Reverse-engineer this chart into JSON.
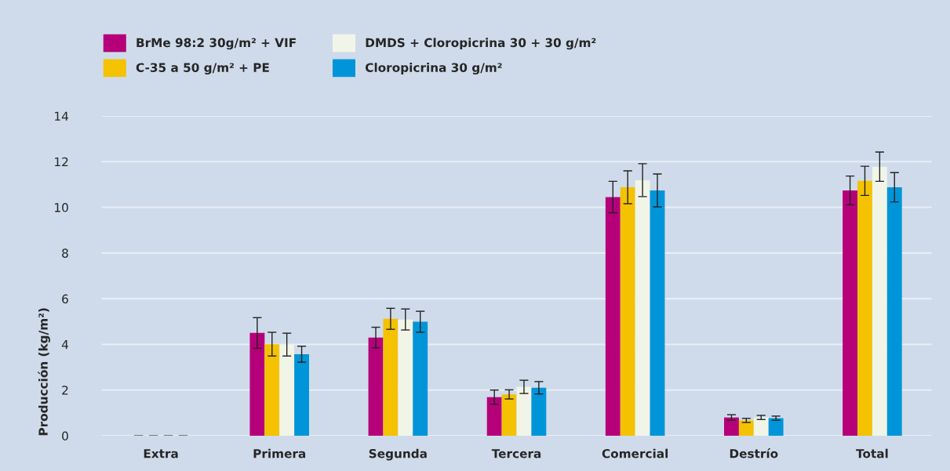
{
  "chart_data": {
    "type": "bar",
    "ylabel": "Producción (kg/m²)",
    "categories": [
      "Extra",
      "Primera",
      "Segunda",
      "Tercera",
      "Comercial",
      "Destrío",
      "Total"
    ],
    "series": [
      {
        "name": "BrMe 98:2 30g/m² + VIF",
        "color": "#b5007a",
        "values": [
          0,
          4.5,
          4.3,
          1.69,
          10.45,
          0.8,
          10.74
        ],
        "errors": [
          null,
          0.67,
          0.45,
          0.31,
          0.69,
          0.12,
          0.63
        ]
      },
      {
        "name": "C-35 a 50 g/m² + PE",
        "color": "#f4c200",
        "values": [
          0,
          4.01,
          5.12,
          1.81,
          10.88,
          0.67,
          11.16
        ],
        "errors": [
          null,
          0.52,
          0.46,
          0.2,
          0.72,
          0.09,
          0.64
        ]
      },
      {
        "name": "DMDS + Cloropicrina 30 + 30 g/m²",
        "color": "#f0f5e8",
        "values": [
          0,
          3.99,
          5.09,
          2.14,
          11.19,
          0.8,
          11.78
        ],
        "errors": [
          null,
          0.5,
          0.46,
          0.29,
          0.72,
          0.09,
          0.64
        ]
      },
      {
        "name": "Cloropicrina 30 g/m²",
        "color": "#0095d8",
        "values": [
          0,
          3.57,
          4.99,
          2.1,
          10.74,
          0.77,
          10.88
        ],
        "errors": [
          null,
          0.35,
          0.46,
          0.27,
          0.72,
          0.09,
          0.64
        ]
      }
    ],
    "ylim": [
      0,
      14
    ],
    "yticks": [
      0,
      2,
      4,
      6,
      8,
      10,
      12,
      14
    ],
    "grid": "y",
    "legend": "top left"
  }
}
